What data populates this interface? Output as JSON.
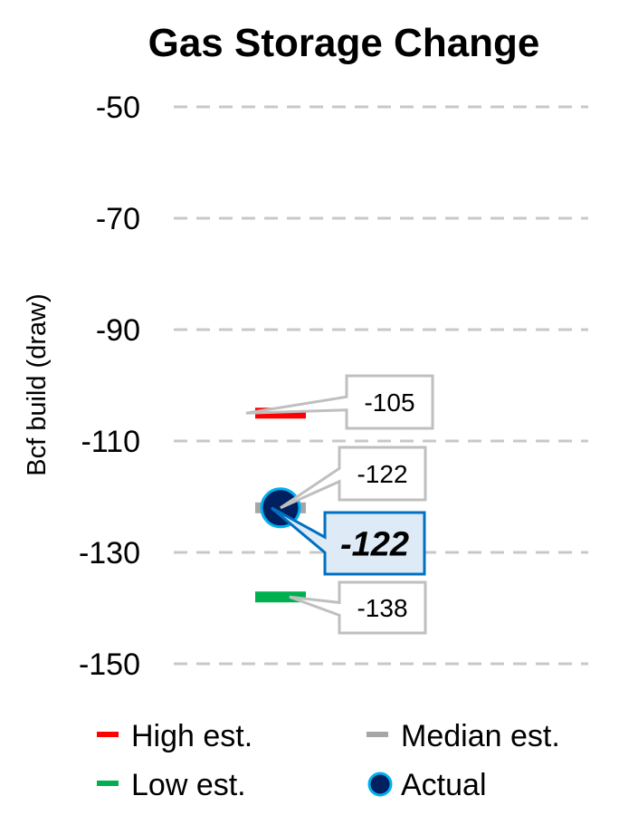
{
  "chart_data": {
    "type": "scatter",
    "title": "Gas Storage Change",
    "ylabel": "Bcf build (draw)",
    "xlabel": "",
    "ylim": [
      -150,
      -50
    ],
    "yticks": [
      -50,
      -70,
      -90,
      -110,
      -130,
      -150
    ],
    "grid": true,
    "legend_position": "bottom",
    "series": [
      {
        "name": "High est.",
        "value": -105,
        "label": "-105",
        "marker": "dash",
        "color": "#ff0000"
      },
      {
        "name": "Median est.",
        "value": -122,
        "label": "-122",
        "marker": "dash",
        "color": "#a6a6a6"
      },
      {
        "name": "Low est.",
        "value": -138,
        "label": "-138",
        "marker": "dash",
        "color": "#00b050"
      },
      {
        "name": "Actual",
        "value": -122,
        "label": "-122",
        "marker": "circle",
        "color": "#002060",
        "edge_color": "#00b0f0"
      }
    ]
  }
}
